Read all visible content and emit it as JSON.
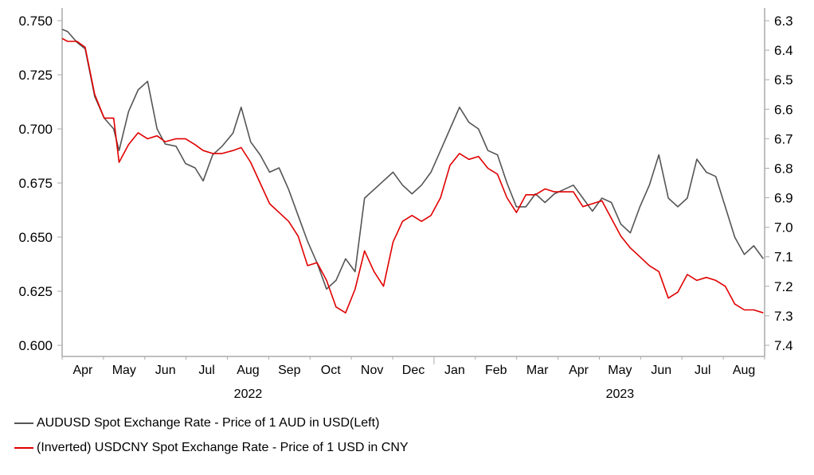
{
  "chart_data": {
    "type": "line",
    "title": "",
    "x_range": [
      "2022-04-01",
      "2023-09-01"
    ],
    "x_tick_labels": [
      "Apr",
      "May",
      "Jun",
      "Jul",
      "Aug",
      "Sep",
      "Oct",
      "Nov",
      "Dec",
      "Jan",
      "Feb",
      "Mar",
      "Apr",
      "May",
      "Jun",
      "Jul",
      "Aug"
    ],
    "year_labels": [
      {
        "label": "2022",
        "month_index": 4
      },
      {
        "label": "2023",
        "month_index": 13
      }
    ],
    "y_left": {
      "range": [
        0.6,
        0.75
      ],
      "ticks": [
        "0.600",
        "0.625",
        "0.650",
        "0.675",
        "0.700",
        "0.725",
        "0.750"
      ]
    },
    "y_right": {
      "range": [
        6.3,
        7.4
      ],
      "inverted": true,
      "ticks": [
        "6.3",
        "6.4",
        "6.5",
        "6.6",
        "6.7",
        "6.8",
        "6.9",
        "7.0",
        "7.1",
        "7.2",
        "7.3",
        "7.4"
      ]
    },
    "grid": false,
    "legend_placement": "bottom-left",
    "series": [
      {
        "name": "AUDUSD Spot Exchange Rate - Price of 1 AUD in USD(Left)",
        "axis": "left",
        "color": "#555555",
        "dates": [
          "2022-04-01",
          "2022-04-05",
          "2022-04-12",
          "2022-04-18",
          "2022-04-25",
          "2022-05-02",
          "2022-05-09",
          "2022-05-13",
          "2022-05-20",
          "2022-05-27",
          "2022-06-03",
          "2022-06-10",
          "2022-06-16",
          "2022-06-24",
          "2022-07-01",
          "2022-07-08",
          "2022-07-14",
          "2022-07-21",
          "2022-07-28",
          "2022-08-05",
          "2022-08-11",
          "2022-08-18",
          "2022-08-25",
          "2022-09-01",
          "2022-09-08",
          "2022-09-15",
          "2022-09-22",
          "2022-09-29",
          "2022-10-06",
          "2022-10-13",
          "2022-10-20",
          "2022-10-27",
          "2022-11-03",
          "2022-11-10",
          "2022-11-17",
          "2022-11-24",
          "2022-12-01",
          "2022-12-08",
          "2022-12-15",
          "2022-12-22",
          "2022-12-29",
          "2023-01-05",
          "2023-01-12",
          "2023-01-19",
          "2023-01-26",
          "2023-02-02",
          "2023-02-09",
          "2023-02-16",
          "2023-02-23",
          "2023-03-02",
          "2023-03-09",
          "2023-03-16",
          "2023-03-23",
          "2023-03-30",
          "2023-04-06",
          "2023-04-13",
          "2023-04-20",
          "2023-04-27",
          "2023-05-04",
          "2023-05-11",
          "2023-05-18",
          "2023-05-25",
          "2023-06-01",
          "2023-06-08",
          "2023-06-15",
          "2023-06-22",
          "2023-06-29",
          "2023-07-06",
          "2023-07-13",
          "2023-07-20",
          "2023-07-27",
          "2023-08-03",
          "2023-08-10",
          "2023-08-17",
          "2023-08-24",
          "2023-08-31"
        ],
        "values": [
          0.746,
          0.745,
          0.74,
          0.737,
          0.715,
          0.705,
          0.7,
          0.69,
          0.708,
          0.718,
          0.722,
          0.7,
          0.693,
          0.692,
          0.684,
          0.682,
          0.676,
          0.688,
          0.692,
          0.698,
          0.71,
          0.694,
          0.688,
          0.68,
          0.682,
          0.672,
          0.66,
          0.648,
          0.638,
          0.626,
          0.63,
          0.64,
          0.634,
          0.668,
          0.672,
          0.676,
          0.68,
          0.674,
          0.67,
          0.674,
          0.68,
          0.69,
          0.7,
          0.71,
          0.703,
          0.7,
          0.69,
          0.688,
          0.675,
          0.664,
          0.664,
          0.67,
          0.666,
          0.67,
          0.672,
          0.674,
          0.668,
          0.662,
          0.668,
          0.666,
          0.656,
          0.652,
          0.664,
          0.674,
          0.688,
          0.668,
          0.664,
          0.668,
          0.686,
          0.68,
          0.678,
          0.664,
          0.65,
          0.642,
          0.646,
          0.64
        ]
      },
      {
        "name": "(Inverted) USDCNY Spot Exchange Rate - Price of 1 USD in CNY",
        "axis": "right",
        "color": "#e00000",
        "dates": [
          "2022-04-01",
          "2022-04-05",
          "2022-04-12",
          "2022-04-18",
          "2022-04-25",
          "2022-05-02",
          "2022-05-09",
          "2022-05-13",
          "2022-05-20",
          "2022-05-27",
          "2022-06-03",
          "2022-06-10",
          "2022-06-16",
          "2022-06-24",
          "2022-07-01",
          "2022-07-08",
          "2022-07-14",
          "2022-07-21",
          "2022-07-28",
          "2022-08-05",
          "2022-08-11",
          "2022-08-18",
          "2022-08-25",
          "2022-09-01",
          "2022-09-08",
          "2022-09-15",
          "2022-09-22",
          "2022-09-29",
          "2022-10-06",
          "2022-10-13",
          "2022-10-20",
          "2022-10-27",
          "2022-11-03",
          "2022-11-10",
          "2022-11-17",
          "2022-11-24",
          "2022-12-01",
          "2022-12-08",
          "2022-12-15",
          "2022-12-22",
          "2022-12-29",
          "2023-01-05",
          "2023-01-12",
          "2023-01-19",
          "2023-01-26",
          "2023-02-02",
          "2023-02-09",
          "2023-02-16",
          "2023-02-23",
          "2023-03-02",
          "2023-03-09",
          "2023-03-16",
          "2023-03-23",
          "2023-03-30",
          "2023-04-06",
          "2023-04-13",
          "2023-04-20",
          "2023-04-27",
          "2023-05-04",
          "2023-05-11",
          "2023-05-18",
          "2023-05-25",
          "2023-06-01",
          "2023-06-08",
          "2023-06-15",
          "2023-06-22",
          "2023-06-29",
          "2023-07-06",
          "2023-07-13",
          "2023-07-20",
          "2023-07-27",
          "2023-08-03",
          "2023-08-10",
          "2023-08-17",
          "2023-08-24",
          "2023-08-31"
        ],
        "values": [
          6.36,
          6.37,
          6.37,
          6.39,
          6.55,
          6.63,
          6.63,
          6.78,
          6.72,
          6.68,
          6.7,
          6.69,
          6.71,
          6.7,
          6.7,
          6.72,
          6.74,
          6.75,
          6.75,
          6.74,
          6.73,
          6.78,
          6.85,
          6.92,
          6.95,
          6.98,
          7.03,
          7.13,
          7.12,
          7.18,
          7.27,
          7.29,
          7.21,
          7.08,
          7.15,
          7.2,
          7.05,
          6.98,
          6.96,
          6.98,
          6.96,
          6.9,
          6.79,
          6.75,
          6.77,
          6.76,
          6.8,
          6.82,
          6.9,
          6.95,
          6.89,
          6.89,
          6.87,
          6.88,
          6.88,
          6.88,
          6.93,
          6.92,
          6.91,
          6.97,
          7.03,
          7.07,
          7.1,
          7.13,
          7.15,
          7.24,
          7.22,
          7.16,
          7.18,
          7.17,
          7.18,
          7.2,
          7.26,
          7.28,
          7.28,
          7.29
        ]
      }
    ]
  }
}
